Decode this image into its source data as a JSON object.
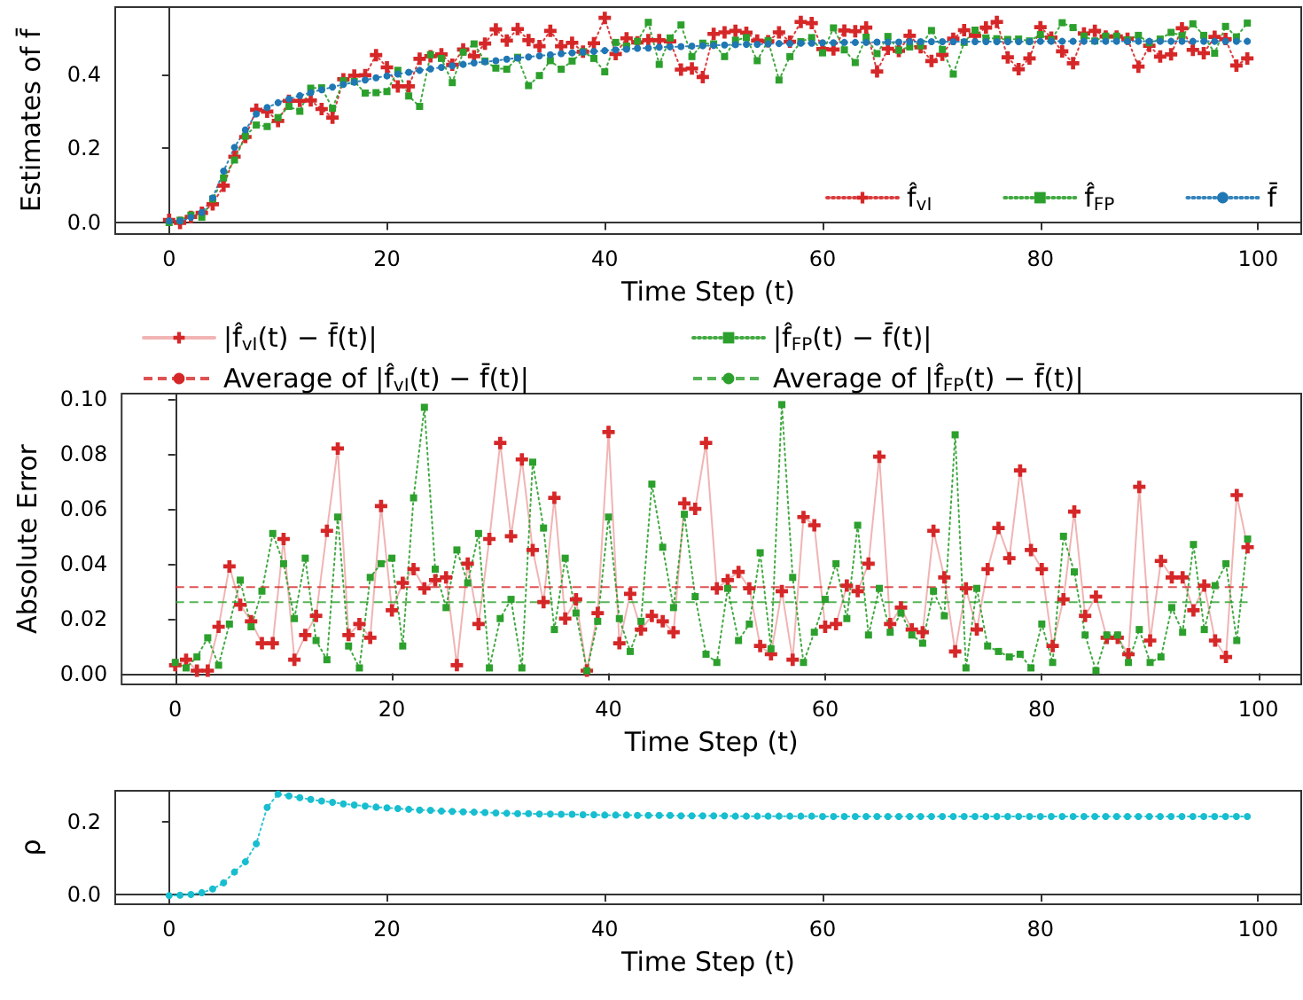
{
  "chart_data": [
    {
      "type": "line",
      "xlabel": "Time Step (t)",
      "ylabel": "Estimates of f̄",
      "xlim": [
        -4.95,
        103.95
      ],
      "xticks": [
        0,
        20,
        40,
        60,
        80,
        100
      ],
      "ylim": [
        -0.03,
        0.58
      ],
      "yticks": [
        {
          "value": 0,
          "label": "0.0"
        },
        {
          "value": 0.2,
          "label": "0.2"
        },
        {
          "value": 0.4,
          "label": "0.4"
        }
      ],
      "legend": "bottom right",
      "x": [
        0,
        1,
        2,
        3,
        4,
        5,
        6,
        7,
        8,
        9,
        10,
        11,
        12,
        13,
        14,
        15,
        16,
        17,
        18,
        19,
        20,
        21,
        22,
        23,
        24,
        25,
        26,
        27,
        28,
        29,
        30,
        31,
        32,
        33,
        34,
        35,
        36,
        37,
        38,
        39,
        40,
        41,
        42,
        43,
        44,
        45,
        46,
        47,
        48,
        49,
        50,
        51,
        52,
        53,
        54,
        55,
        56,
        57,
        58,
        59,
        60,
        61,
        62,
        63,
        64,
        65,
        66,
        67,
        68,
        69,
        70,
        71,
        72,
        73,
        74,
        75,
        76,
        77,
        78,
        79,
        80,
        81,
        82,
        83,
        84,
        85,
        86,
        87,
        88,
        89,
        90,
        91,
        92,
        93,
        94,
        95,
        96,
        97,
        98,
        99
      ],
      "series": [
        {
          "name": "f̂$_{vI}$",
          "color": "#d62728",
          "marker": "cross",
          "line_style": "dotted",
          "values": [
            0.008,
            0.0,
            0.016,
            0.027,
            0.05,
            0.1,
            0.178,
            0.231,
            0.304,
            0.299,
            0.274,
            0.328,
            0.328,
            0.329,
            0.306,
            0.283,
            0.386,
            0.396,
            0.397,
            0.451,
            0.418,
            0.367,
            0.367,
            0.441,
            0.448,
            0.453,
            0.425,
            0.466,
            0.448,
            0.482,
            0.52,
            0.49,
            0.521,
            0.491,
            0.475,
            0.516,
            0.475,
            0.484,
            0.46,
            0.483,
            0.551,
            0.454,
            0.496,
            0.485,
            0.491,
            0.491,
            0.488,
            0.412,
            0.415,
            0.392,
            0.508,
            0.512,
            0.516,
            0.511,
            0.49,
            0.488,
            0.512,
            0.487,
            0.54,
            0.537,
            0.467,
            0.466,
            0.517,
            0.515,
            0.525,
            0.407,
            0.468,
            0.462,
            0.503,
            0.472,
            0.435,
            0.452,
            0.495,
            0.518,
            0.503,
            0.525,
            0.54,
            0.445,
            0.413,
            0.442,
            0.526,
            0.498,
            0.461,
            0.429,
            0.509,
            0.516,
            0.501,
            0.501,
            0.495,
            0.42,
            0.476,
            0.447,
            0.453,
            0.523,
            0.465,
            0.456,
            0.5,
            0.494,
            0.423,
            0.442
          ]
        },
        {
          "name": "f̂$_{FP}$",
          "color": "#2ca02c",
          "marker": "square",
          "line_style": "dotted",
          "values": [
            0.001,
            0.007,
            0.021,
            0.015,
            0.064,
            0.121,
            0.169,
            0.233,
            0.263,
            0.259,
            0.283,
            0.313,
            0.3,
            0.362,
            0.363,
            0.308,
            0.382,
            0.38,
            0.349,
            0.35,
            0.353,
            0.41,
            0.341,
            0.313,
            0.452,
            0.442,
            0.377,
            0.459,
            0.481,
            0.435,
            0.416,
            0.413,
            0.445,
            0.369,
            0.396,
            0.436,
            0.413,
            0.435,
            0.46,
            0.442,
            0.406,
            0.485,
            0.475,
            0.488,
            0.539,
            0.426,
            0.497,
            0.532,
            0.447,
            0.483,
            0.481,
            0.447,
            0.491,
            0.498,
            0.436,
            0.49,
            0.384,
            0.447,
            0.487,
            0.498,
            0.457,
            0.524,
            0.465,
            0.431,
            0.499,
            0.455,
            0.501,
            0.464,
            0.473,
            0.476,
            0.517,
            0.466,
            0.4,
            0.485,
            0.518,
            0.497,
            0.495,
            0.493,
            0.494,
            0.489,
            0.506,
            0.492,
            0.538,
            0.525,
            0.502,
            0.489,
            0.502,
            0.502,
            0.492,
            0.504,
            0.484,
            0.494,
            0.512,
            0.503,
            0.535,
            0.504,
            0.456,
            0.528,
            0.5,
            0.537
          ]
        },
        {
          "name": "f̄",
          "color": "#1f77b4",
          "marker": "circle",
          "line_style": "dotted",
          "values": [
            0.005,
            0.005,
            0.015,
            0.028,
            0.067,
            0.139,
            0.203,
            0.25,
            0.293,
            0.31,
            0.323,
            0.333,
            0.342,
            0.35,
            0.358,
            0.365,
            0.372,
            0.378,
            0.384,
            0.39,
            0.395,
            0.4,
            0.405,
            0.41,
            0.414,
            0.418,
            0.422,
            0.426,
            0.43,
            0.433,
            0.436,
            0.44,
            0.443,
            0.446,
            0.449,
            0.452,
            0.455,
            0.457,
            0.459,
            0.461,
            0.463,
            0.465,
            0.467,
            0.469,
            0.47,
            0.472,
            0.473,
            0.474,
            0.475,
            0.476,
            0.477,
            0.478,
            0.479,
            0.48,
            0.48,
            0.481,
            0.482,
            0.482,
            0.483,
            0.483,
            0.484,
            0.484,
            0.485,
            0.485,
            0.485,
            0.486,
            0.486,
            0.486,
            0.487,
            0.487,
            0.487,
            0.487,
            0.487,
            0.487,
            0.487,
            0.487,
            0.487,
            0.487,
            0.487,
            0.487,
            0.488,
            0.488,
            0.488,
            0.488,
            0.488,
            0.488,
            0.488,
            0.488,
            0.488,
            0.488,
            0.488,
            0.488,
            0.488,
            0.488,
            0.488,
            0.488,
            0.488,
            0.488,
            0.488,
            0.488
          ]
        }
      ]
    },
    {
      "type": "line",
      "xlabel": "Time Step (t)",
      "ylabel": "Absolute Error",
      "xlim": [
        -4.95,
        103.95
      ],
      "xticks": [
        0,
        20,
        40,
        60,
        80,
        100
      ],
      "ylim": [
        -0.004,
        0.102
      ],
      "yticks": [
        {
          "value": 0,
          "label": "0.00"
        },
        {
          "value": 0.02,
          "label": "0.02"
        },
        {
          "value": 0.04,
          "label": "0.04"
        },
        {
          "value": 0.06,
          "label": "0.06"
        },
        {
          "value": 0.08,
          "label": "0.08"
        },
        {
          "value": 0.1,
          "label": "0.10"
        }
      ],
      "legend": "top",
      "x": [
        0,
        1,
        2,
        3,
        4,
        5,
        6,
        7,
        8,
        9,
        10,
        11,
        12,
        13,
        14,
        15,
        16,
        17,
        18,
        19,
        20,
        21,
        22,
        23,
        24,
        25,
        26,
        27,
        28,
        29,
        30,
        31,
        32,
        33,
        34,
        35,
        36,
        37,
        38,
        39,
        40,
        41,
        42,
        43,
        44,
        45,
        46,
        47,
        48,
        49,
        50,
        51,
        52,
        53,
        54,
        55,
        56,
        57,
        58,
        59,
        60,
        61,
        62,
        63,
        64,
        65,
        66,
        67,
        68,
        69,
        70,
        71,
        72,
        73,
        74,
        75,
        76,
        77,
        78,
        79,
        80,
        81,
        82,
        83,
        84,
        85,
        86,
        87,
        88,
        89,
        90,
        91,
        92,
        93,
        94,
        95,
        96,
        97,
        98,
        99
      ],
      "series": [
        {
          "name": "|f̂$_{vI}$(t) − f̄(t)|",
          "color": "#d62728",
          "marker": "cross",
          "line_style": "solid",
          "values": [
            0.003,
            0.005,
            0.001,
            0.001,
            0.017,
            0.039,
            0.025,
            0.019,
            0.011,
            0.011,
            0.049,
            0.005,
            0.014,
            0.021,
            0.052,
            0.082,
            0.014,
            0.018,
            0.013,
            0.061,
            0.023,
            0.033,
            0.038,
            0.031,
            0.034,
            0.035,
            0.003,
            0.04,
            0.018,
            0.049,
            0.084,
            0.05,
            0.078,
            0.045,
            0.026,
            0.064,
            0.02,
            0.027,
            0.001,
            0.022,
            0.088,
            0.011,
            0.029,
            0.016,
            0.021,
            0.019,
            0.015,
            0.062,
            0.06,
            0.084,
            0.031,
            0.034,
            0.037,
            0.031,
            0.01,
            0.007,
            0.03,
            0.005,
            0.057,
            0.054,
            0.017,
            0.018,
            0.032,
            0.03,
            0.04,
            0.079,
            0.018,
            0.024,
            0.016,
            0.015,
            0.052,
            0.035,
            0.008,
            0.031,
            0.016,
            0.038,
            0.053,
            0.042,
            0.074,
            0.045,
            0.038,
            0.01,
            0.027,
            0.059,
            0.021,
            0.028,
            0.013,
            0.013,
            0.007,
            0.068,
            0.012,
            0.041,
            0.035,
            0.035,
            0.023,
            0.032,
            0.012,
            0.006,
            0.065,
            0.046
          ]
        },
        {
          "name": "|f̂$_{FP}$(t) − f̄(t)|",
          "color": "#2ca02c",
          "marker": "square",
          "line_style": "dotted",
          "values": [
            0.004,
            0.002,
            0.006,
            0.013,
            0.003,
            0.018,
            0.034,
            0.017,
            0.03,
            0.051,
            0.04,
            0.02,
            0.042,
            0.012,
            0.005,
            0.057,
            0.01,
            0.002,
            0.035,
            0.04,
            0.042,
            0.01,
            0.064,
            0.097,
            0.038,
            0.024,
            0.045,
            0.033,
            0.051,
            0.002,
            0.02,
            0.027,
            0.002,
            0.077,
            0.053,
            0.016,
            0.042,
            0.022,
            0.001,
            0.019,
            0.057,
            0.02,
            0.008,
            0.019,
            0.069,
            0.046,
            0.024,
            0.058,
            0.028,
            0.007,
            0.004,
            0.031,
            0.012,
            0.018,
            0.044,
            0.009,
            0.098,
            0.035,
            0.004,
            0.015,
            0.027,
            0.04,
            0.02,
            0.054,
            0.014,
            0.031,
            0.015,
            0.022,
            0.014,
            0.011,
            0.03,
            0.021,
            0.087,
            0.002,
            0.031,
            0.01,
            0.008,
            0.006,
            0.007,
            0.002,
            0.018,
            0.004,
            0.05,
            0.037,
            0.014,
            0.001,
            0.014,
            0.014,
            0.004,
            0.016,
            0.004,
            0.006,
            0.024,
            0.015,
            0.047,
            0.016,
            0.032,
            0.04,
            0.012,
            0.049
          ]
        }
      ],
      "ref_lines": [
        {
          "axis": "y",
          "value": 0.0315,
          "label": "Average of |f̂$_{vI}$(t) − f̄(t)|",
          "color": "#d62728",
          "line_style": "dashed"
        },
        {
          "axis": "y",
          "value": 0.026,
          "label": "Average of |f̂$_{FP}$(t) − f̄(t)|",
          "color": "#2ca02c",
          "line_style": "dashed"
        }
      ]
    },
    {
      "type": "line",
      "xlabel": "Time Step (t)",
      "ylabel": "ρ",
      "xlim": [
        -4.95,
        103.95
      ],
      "xticks": [
        0,
        20,
        40,
        60,
        80,
        100
      ],
      "ylim": [
        -0.027,
        0.286
      ],
      "yticks": [
        {
          "value": 0,
          "label": "0.0"
        },
        {
          "value": 0.2,
          "label": "0.2"
        }
      ],
      "x": [
        0,
        1,
        2,
        3,
        4,
        5,
        6,
        7,
        8,
        9,
        10,
        11,
        12,
        13,
        14,
        15,
        16,
        17,
        18,
        19,
        20,
        21,
        22,
        23,
        24,
        25,
        26,
        27,
        28,
        29,
        30,
        31,
        32,
        33,
        34,
        35,
        36,
        37,
        38,
        39,
        40,
        41,
        42,
        43,
        44,
        45,
        46,
        47,
        48,
        49,
        50,
        51,
        52,
        53,
        54,
        55,
        56,
        57,
        58,
        59,
        60,
        61,
        62,
        63,
        64,
        65,
        66,
        67,
        68,
        69,
        70,
        71,
        72,
        73,
        74,
        75,
        76,
        77,
        78,
        79,
        80,
        81,
        82,
        83,
        84,
        85,
        86,
        87,
        88,
        89,
        90,
        91,
        92,
        93,
        94,
        95,
        96,
        97,
        98,
        99
      ],
      "series": [
        {
          "color": "#17becf",
          "marker": "circle",
          "line_style": "dotted",
          "values": [
            -0.003,
            -0.002,
            0.0,
            0.005,
            0.015,
            0.032,
            0.062,
            0.09,
            0.14,
            0.24,
            0.277,
            0.272,
            0.267,
            0.262,
            0.258,
            0.254,
            0.25,
            0.247,
            0.244,
            0.241,
            0.239,
            0.237,
            0.235,
            0.233,
            0.232,
            0.23,
            0.229,
            0.228,
            0.227,
            0.226,
            0.225,
            0.224,
            0.223,
            0.223,
            0.222,
            0.222,
            0.221,
            0.221,
            0.22,
            0.22,
            0.219,
            0.219,
            0.219,
            0.218,
            0.218,
            0.218,
            0.218,
            0.217,
            0.217,
            0.217,
            0.217,
            0.217,
            0.216,
            0.216,
            0.216,
            0.216,
            0.216,
            0.216,
            0.216,
            0.216,
            0.215,
            0.215,
            0.215,
            0.215,
            0.215,
            0.215,
            0.215,
            0.215,
            0.215,
            0.215,
            0.215,
            0.215,
            0.215,
            0.215,
            0.215,
            0.215,
            0.215,
            0.215,
            0.215,
            0.215,
            0.215,
            0.215,
            0.215,
            0.215,
            0.215,
            0.215,
            0.215,
            0.215,
            0.215,
            0.215,
            0.215,
            0.215,
            0.215,
            0.215,
            0.215,
            0.215,
            0.215,
            0.215,
            0.215,
            0.215
          ]
        }
      ]
    }
  ]
}
